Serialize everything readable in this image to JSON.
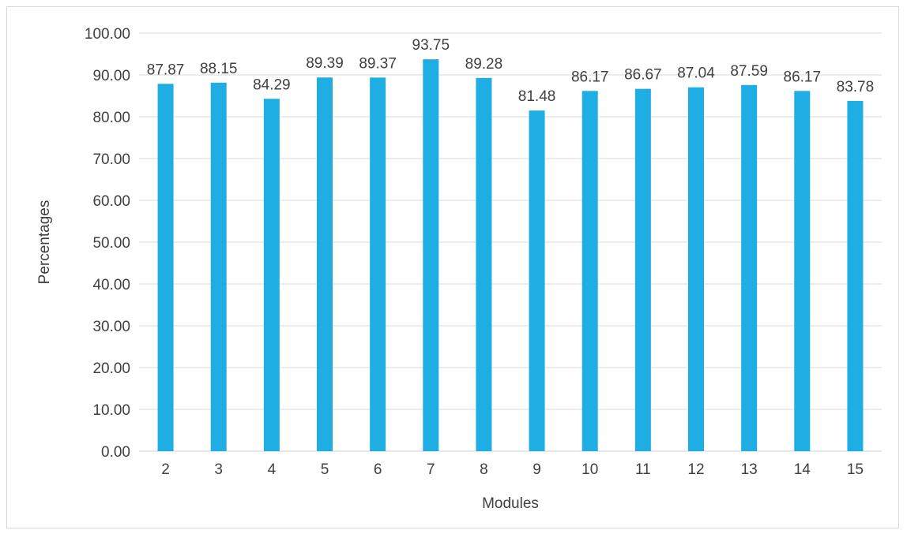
{
  "chart_data": {
    "type": "bar",
    "title": "",
    "xlabel": "Modules",
    "ylabel": "Percentages",
    "categories": [
      "2",
      "3",
      "4",
      "5",
      "6",
      "7",
      "8",
      "9",
      "10",
      "11",
      "12",
      "13",
      "14",
      "15"
    ],
    "values": [
      87.87,
      88.15,
      84.29,
      89.39,
      89.37,
      93.75,
      89.28,
      81.48,
      86.17,
      86.67,
      87.04,
      87.59,
      86.17,
      83.78
    ],
    "ylim": [
      0,
      100
    ],
    "yticks": [
      0,
      10,
      20,
      30,
      40,
      50,
      60,
      70,
      80,
      90,
      100
    ],
    "ytick_labels": [
      "0.00",
      "10.00",
      "20.00",
      "30.00",
      "40.00",
      "50.00",
      "60.00",
      "70.00",
      "80.00",
      "90.00",
      "100.00"
    ],
    "grid": "horizontal",
    "legend": "none",
    "data_labels": true,
    "colors": {
      "bar": "#1EAEE3",
      "grid": "#d9d9d9",
      "text": "#404040"
    }
  }
}
